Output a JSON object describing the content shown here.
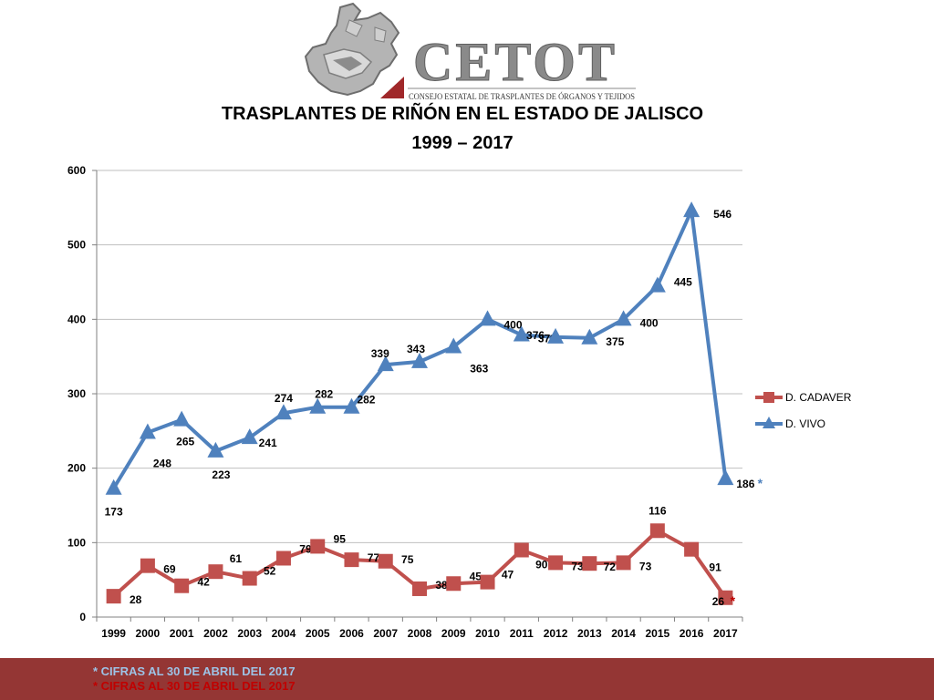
{
  "logo": {
    "name": "CETOT",
    "subtitle": "CONSEJO ESTATAL DE TRASPLANTES DE ÓRGANOS Y TEJIDOS"
  },
  "chart_data": {
    "type": "line",
    "title": "TRASPLANTES DE RIÑÓN EN EL ESTADO DE JALISCO",
    "subtitle": "1999 – 2017",
    "xlabel": "",
    "ylabel": "",
    "categories": [
      "1999",
      "2000",
      "2001",
      "2002",
      "2003",
      "2004",
      "2005",
      "2006",
      "2007",
      "2008",
      "2009",
      "2010",
      "2011",
      "2012",
      "2013",
      "2014",
      "2015",
      "2016",
      "2017"
    ],
    "ylim": [
      0,
      600
    ],
    "yticks": [
      0,
      100,
      200,
      300,
      400,
      500,
      600
    ],
    "grid": true,
    "legend": "right",
    "series": [
      {
        "name": "D. CADAVER",
        "color": "#c0504d",
        "marker": "square",
        "values": [
          28,
          69,
          42,
          61,
          52,
          79,
          95,
          77,
          75,
          38,
          45,
          47,
          90,
          73,
          72,
          73,
          116,
          91,
          26
        ]
      },
      {
        "name": "D. VIVO",
        "color": "#4f81bd",
        "marker": "triangle",
        "values": [
          173,
          248,
          265,
          223,
          241,
          274,
          282,
          282,
          339,
          343,
          363,
          400,
          379,
          376,
          375,
          400,
          445,
          546,
          186
        ]
      }
    ],
    "annotations": [
      {
        "series": "D. VIVO",
        "category": "2017",
        "text": "*",
        "color": "#4f81bd"
      },
      {
        "series": "D. CADAVER",
        "category": "2017",
        "text": "*",
        "color": "#c00000"
      }
    ]
  },
  "footnotes": [
    {
      "text": "* CIFRAS AL 30 DE ABRIL DEL 2017",
      "color": "#9dc3e6"
    },
    {
      "text": "* CIFRAS AL 30 DE ABRIL DEL 2017",
      "color": "#c00000"
    }
  ],
  "colors": {
    "footer_bar": "#943634",
    "logo_text": "#7f7f7f",
    "logo_accent": "#a0282a"
  }
}
